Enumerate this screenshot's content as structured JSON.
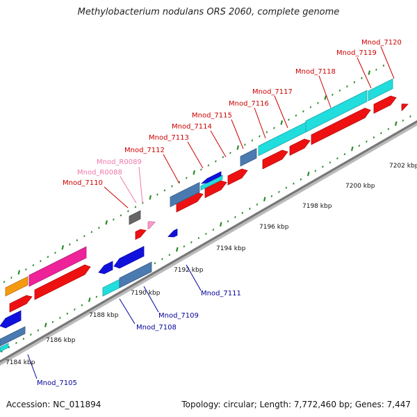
{
  "title": "Methylobacterium nodulans ORS 2060, complete genome",
  "footer": {
    "accession": "Accession: NC_011894",
    "summary": "Topology: circular; Length: 7,772,460 bp; Genes: 7,447"
  },
  "colors": {
    "forward": "#ee1111",
    "reverse": "#1111dd",
    "rna": "#ff99cc",
    "backbone": "#999999",
    "cyan": "#22dddd",
    "steelblue": "#4a7ab0",
    "magenta": "#ee2299",
    "orange": "#f59a10",
    "gray": "#666666",
    "tick_green": "#2a8a2a",
    "forward_label": "#cc0000",
    "reverse_label": "#000099",
    "rna_label": "#ee77aa"
  },
  "scale_labels": [
    "7184 kbp",
    "7186 kbp",
    "7188 kbp",
    "7190 kbp",
    "7192 kbp",
    "7194 kbp",
    "7196 kbp",
    "7198 kbp",
    "7200 kbp",
    "7202 kbp"
  ],
  "forward_labels": [
    "Mnod_7110",
    "Mnod_7112",
    "Mnod_7113",
    "Mnod_7114",
    "Mnod_7115",
    "Mnod_7116",
    "Mnod_7117",
    "Mnod_7118",
    "Mnod_7119",
    "Mnod_7120"
  ],
  "rna_labels": [
    "Mnod_R0088",
    "Mnod_R0089"
  ],
  "reverse_labels": [
    "Mnod_7105",
    "Mnod_7108",
    "Mnod_7109",
    "Mnod_7111"
  ]
}
